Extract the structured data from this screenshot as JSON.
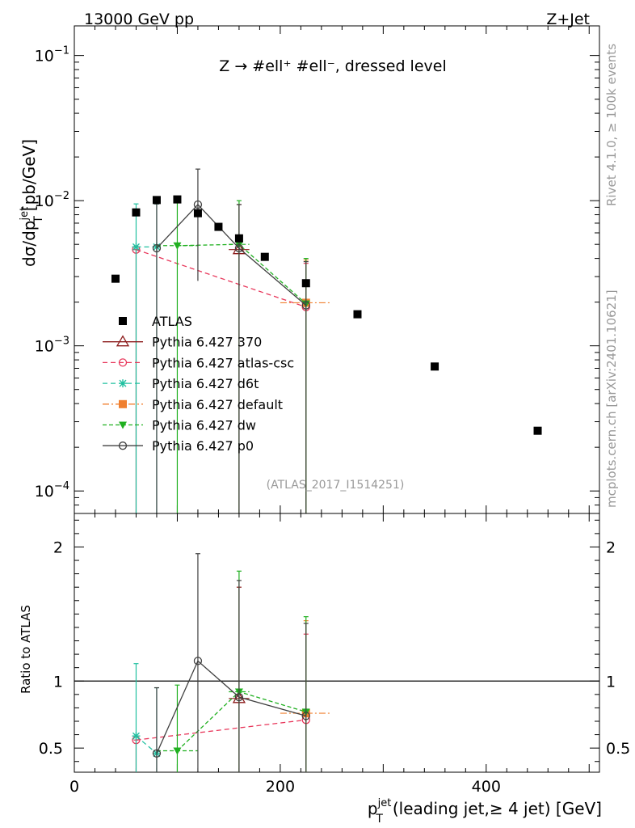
{
  "header": {
    "energy": "13000 GeV pp",
    "process": "Z+Jet",
    "subtitle": "Z → #ell⁺ #ell⁻, dressed level",
    "analysis": "(ATLAS_2017_I1514251)",
    "rivet_note": "Rivet 4.1.0, ≥ 100k events",
    "site_note": "mcplots.cern.ch [arXiv:2401.10621]"
  },
  "colors": {
    "ATLAS": "#000000",
    "p370": "#8b1a1a",
    "atlascsc": "#e8365a",
    "d6t": "#20c0a0",
    "default": "#f08030",
    "dw": "#20b020",
    "p0": "#404040"
  },
  "chart_data": {
    "type": "scatter",
    "title": "Z → #ell⁺ #ell⁻, dressed level",
    "xlabel_main": "p",
    "xlabel_sup": "jet",
    "xlabel_sub": "T",
    "xlabel_rest": "(leading jet,≥ 4 jet) [GeV]",
    "ylabel_top": "dσ/dp",
    "ylabel_top_sup": "jet",
    "ylabel_top_sub": "T",
    "ylabel_top_rest": "[pb/GeV]",
    "ylabel_ratio": "Ratio to ATLAS",
    "xlim": [
      0,
      510
    ],
    "ylim_top": [
      7e-05,
      0.16
    ],
    "ylim_ratio": [
      0.32,
      2.25
    ],
    "x_ticks": [
      0,
      200,
      400
    ],
    "x_tick_labels": [
      "0",
      "200",
      "400"
    ],
    "y_top_ticks": [
      0.1,
      0.01,
      0.001,
      0.0001
    ],
    "y_top_tick_labels": [
      [
        "10",
        "−1"
      ],
      [
        "10",
        "−2"
      ],
      [
        "10",
        "−3"
      ],
      [
        "10",
        "−4"
      ]
    ],
    "y_ratio_ticks": [
      0.5,
      1,
      2
    ],
    "y_ratio_tick_labels": [
      "0.5",
      "1",
      "2"
    ],
    "data": {
      "name": "ATLAS",
      "x": [
        40,
        60,
        80,
        100,
        120,
        140,
        160,
        185,
        225,
        275,
        350,
        450
      ],
      "y": [
        0.0029,
        0.0083,
        0.0101,
        0.0102,
        0.0082,
        0.0066,
        0.0055,
        0.0041,
        0.0027,
        0.00165,
        0.00072,
        0.00026
      ]
    },
    "series": [
      {
        "name": "Pythia 6.427 370",
        "key": "p370",
        "marker": "triangle",
        "dash": "",
        "x": [
          160
        ],
        "xlo": [
          150
        ],
        "xhi": [
          170
        ],
        "y": [
          0.0046
        ],
        "ylo": [
          7e-05
        ],
        "yhi": [
          0.0094
        ],
        "ratio": [
          0.87
        ],
        "rlo": [
          0.32
        ],
        "rhi": [
          1.7
        ]
      },
      {
        "name": "Pythia 6.427 atlas-csc",
        "key": "atlascsc",
        "marker": "circle-open",
        "dash": "6,4",
        "x": [
          60,
          225
        ],
        "xlo": [
          60,
          225
        ],
        "xhi": [
          60,
          225
        ],
        "y": [
          0.0046,
          0.00185
        ],
        "ylo": [
          7e-05,
          7e-05
        ],
        "yhi": [
          0.0046,
          0.0037
        ],
        "ratio": [
          0.56,
          0.71
        ],
        "rlo": [
          0.32,
          0.32
        ],
        "rhi": [
          0.56,
          1.35
        ]
      },
      {
        "name": "Pythia 6.427 d6t",
        "key": "d6t",
        "marker": "star",
        "dash": "6,4",
        "x": [
          60,
          80
        ],
        "xlo": [
          60,
          80
        ],
        "xhi": [
          60,
          80
        ],
        "y": [
          0.0048,
          0.0048
        ],
        "ylo": [
          7e-05,
          7e-05
        ],
        "yhi": [
          0.0095,
          0.0095
        ],
        "ratio": [
          0.59,
          0.46
        ],
        "rlo": [
          0.32,
          0.32
        ],
        "rhi": [
          1.13,
          0.95
        ]
      },
      {
        "name": "Pythia 6.427 default",
        "key": "default",
        "marker": "square",
        "dash": "8,3,2,3",
        "x": [
          225
        ],
        "xlo": [
          200
        ],
        "xhi": [
          250
        ],
        "y": [
          0.00198
        ],
        "ylo": [
          7e-05
        ],
        "yhi": [
          0.0039
        ],
        "ratio": [
          0.76
        ],
        "rlo": [
          0.32
        ],
        "rhi": [
          1.45
        ]
      },
      {
        "name": "Pythia 6.427 dw",
        "key": "dw",
        "marker": "triangle-down",
        "dash": "5,3",
        "x": [
          100,
          160,
          225
        ],
        "xlo": [
          80,
          150,
          225
        ],
        "xhi": [
          120,
          170,
          225
        ],
        "y": [
          0.0049,
          0.005,
          0.00195
        ],
        "ylo": [
          7e-05,
          7e-05,
          7e-05
        ],
        "yhi": [
          0.0098,
          0.01,
          0.004
        ],
        "ratio": [
          0.48,
          0.92,
          0.77
        ],
        "rlo": [
          0.32,
          0.32,
          0.32
        ],
        "rhi": [
          0.97,
          1.82,
          1.48
        ]
      },
      {
        "name": "Pythia 6.427 p0",
        "key": "p0",
        "marker": "circle-open",
        "dash": "",
        "x": [
          80,
          120,
          160,
          225
        ],
        "xlo": [
          80,
          120,
          160,
          225
        ],
        "xhi": [
          80,
          120,
          160,
          225
        ],
        "y": [
          0.0047,
          0.0094,
          0.0047,
          0.0019
        ],
        "ylo": [
          7e-05,
          0.0028,
          7e-05,
          7e-05
        ],
        "yhi": [
          0.0095,
          0.0165,
          0.0094,
          0.0038
        ],
        "ratio": [
          0.46,
          1.15,
          0.88,
          0.74
        ],
        "rlo": [
          0.32,
          0.33,
          0.32,
          0.32
        ],
        "rhi": [
          0.95,
          1.95,
          1.75,
          1.43
        ]
      }
    ]
  }
}
